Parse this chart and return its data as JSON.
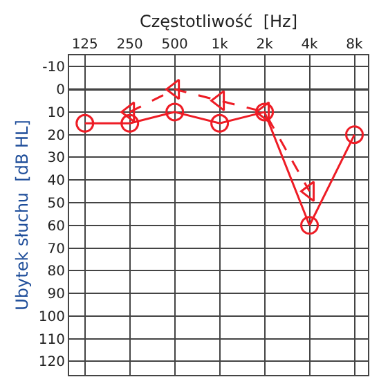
{
  "chart_data": {
    "type": "line",
    "xlabel": "Częstotliwość  [Hz]",
    "ylabel": "Ubytek słuchu  [dB HL]",
    "categories": [
      "125",
      "250",
      "500",
      "1k",
      "2k",
      "4k",
      "8k"
    ],
    "series": [
      {
        "color": "#ee1c25",
        "values": [
          15,
          15,
          10,
          15,
          10,
          60,
          20
        ],
        "marker": "circle",
        "line_style": "solid"
      },
      {
        "color": "#ee1c25",
        "values": [
          null,
          10,
          0,
          5,
          10,
          45,
          null
        ],
        "marker": "triangle",
        "line_style": "dashed"
      }
    ],
    "ylim": [
      126,
      -15
    ],
    "yticks": [
      -10,
      0,
      10,
      20,
      30,
      40,
      50,
      60,
      70,
      80,
      90,
      100,
      110,
      120
    ],
    "grid": true,
    "ref_lines": [
      {
        "axis": "y",
        "value": 0,
        "color": "#000000"
      }
    ]
  }
}
